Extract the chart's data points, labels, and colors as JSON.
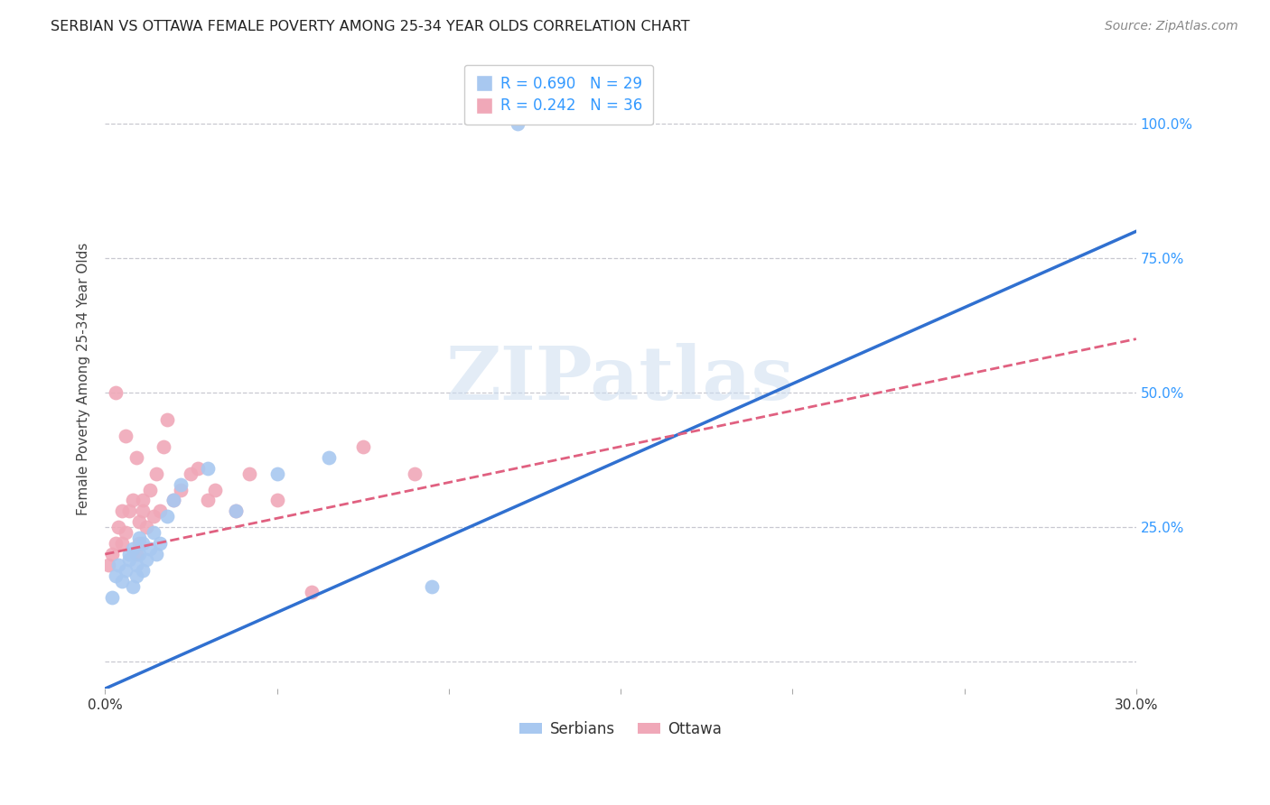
{
  "title": "SERBIAN VS OTTAWA FEMALE POVERTY AMONG 25-34 YEAR OLDS CORRELATION CHART",
  "source": "Source: ZipAtlas.com",
  "ylabel": "Female Poverty Among 25-34 Year Olds",
  "xlim": [
    0.0,
    0.3
  ],
  "ylim": [
    -0.05,
    1.1
  ],
  "xticks": [
    0.0,
    0.05,
    0.1,
    0.15,
    0.2,
    0.25,
    0.3
  ],
  "xticklabels": [
    "0.0%",
    "",
    "",
    "",
    "",
    "",
    "30.0%"
  ],
  "yticks": [
    0.0,
    0.25,
    0.5,
    0.75,
    1.0
  ],
  "yticklabels": [
    "",
    "25.0%",
    "50.0%",
    "75.0%",
    "100.0%"
  ],
  "background_color": "#ffffff",
  "grid_color": "#c8c8d0",
  "watermark_text": "ZIPatlas",
  "legend_serbian_label": "R = 0.690   N = 29",
  "legend_ottawa_label": "R = 0.242   N = 36",
  "legend_bottom_serbian": "Serbians",
  "legend_bottom_ottawa": "Ottawa",
  "serbian_color": "#a8c8f0",
  "ottawa_color": "#f0a8b8",
  "serbian_line_color": "#3070d0",
  "ottawa_line_color": "#e06080",
  "title_color": "#222222",
  "axis_label_color": "#444444",
  "tick_color_x": "#333333",
  "tick_color_y": "#3399ff",
  "serbian_points_x": [
    0.002,
    0.003,
    0.004,
    0.005,
    0.006,
    0.007,
    0.007,
    0.008,
    0.008,
    0.009,
    0.009,
    0.01,
    0.01,
    0.011,
    0.011,
    0.012,
    0.013,
    0.014,
    0.015,
    0.016,
    0.018,
    0.02,
    0.022,
    0.03,
    0.038,
    0.05,
    0.065,
    0.095,
    0.12
  ],
  "serbian_points_y": [
    0.12,
    0.16,
    0.18,
    0.15,
    0.17,
    0.19,
    0.2,
    0.14,
    0.21,
    0.18,
    0.16,
    0.2,
    0.23,
    0.17,
    0.22,
    0.19,
    0.21,
    0.24,
    0.2,
    0.22,
    0.27,
    0.3,
    0.33,
    0.36,
    0.28,
    0.35,
    0.38,
    0.14,
    1.0
  ],
  "ottawa_points_x": [
    0.001,
    0.002,
    0.003,
    0.003,
    0.004,
    0.005,
    0.005,
    0.006,
    0.006,
    0.007,
    0.008,
    0.009,
    0.009,
    0.01,
    0.01,
    0.011,
    0.011,
    0.012,
    0.013,
    0.014,
    0.015,
    0.016,
    0.017,
    0.018,
    0.02,
    0.022,
    0.025,
    0.027,
    0.03,
    0.032,
    0.038,
    0.042,
    0.05,
    0.06,
    0.075,
    0.09
  ],
  "ottawa_points_y": [
    0.18,
    0.2,
    0.22,
    0.5,
    0.25,
    0.28,
    0.22,
    0.24,
    0.42,
    0.28,
    0.3,
    0.2,
    0.38,
    0.26,
    0.22,
    0.28,
    0.3,
    0.25,
    0.32,
    0.27,
    0.35,
    0.28,
    0.4,
    0.45,
    0.3,
    0.32,
    0.35,
    0.36,
    0.3,
    0.32,
    0.28,
    0.35,
    0.3,
    0.13,
    0.4,
    0.35
  ],
  "serbian_trendline": [
    0.0,
    0.3,
    -0.05,
    0.8
  ],
  "ottawa_trendline": [
    0.0,
    0.3,
    0.2,
    0.6
  ]
}
